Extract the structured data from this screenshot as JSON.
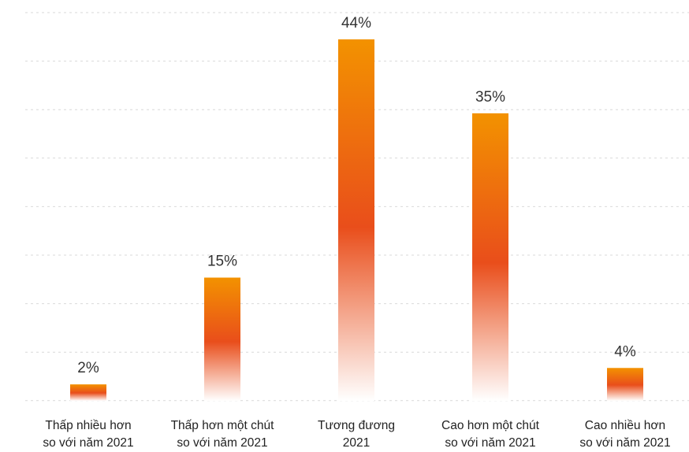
{
  "chart_data": {
    "type": "bar",
    "categories": [
      [
        "Thấp nhiều hơn",
        "so với năm 2021"
      ],
      [
        "Thấp hơn một chút",
        "so với năm 2021"
      ],
      [
        "Tương đương",
        "2021"
      ],
      [
        "Cao hơn một chút",
        "so với năm 2021"
      ],
      [
        "Cao nhiều hơn",
        "so với năm 2021"
      ]
    ],
    "values": [
      2,
      15,
      44,
      35,
      4
    ],
    "value_labels": [
      "2%",
      "15%",
      "44%",
      "35%",
      "4%"
    ],
    "ylim": [
      0,
      44
    ],
    "grid": true,
    "colors": {
      "top": "#F39200",
      "mid": "#E94E1B",
      "bottom": "#FFFFFF",
      "text": "#333333",
      "grid": "#D9D9D9"
    }
  }
}
